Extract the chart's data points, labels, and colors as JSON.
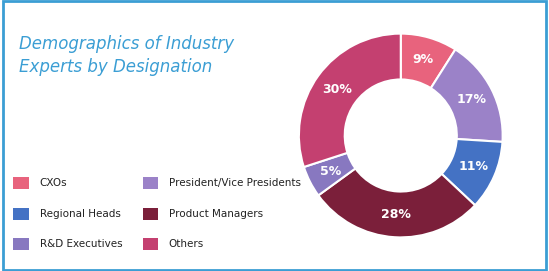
{
  "title": "Demographics of Industry\nExperts by Designation",
  "title_color": "#3B9ED4",
  "title_fontsize": 12,
  "segments": [
    {
      "label": "CXOs",
      "value": 9,
      "color": "#E8637D",
      "pct": "9%"
    },
    {
      "label": "President/Vice Presidents",
      "value": 17,
      "color": "#9B82C8",
      "pct": "17%"
    },
    {
      "label": "Regional Heads",
      "value": 11,
      "color": "#4472C4",
      "pct": "11%"
    },
    {
      "label": "Product Managers",
      "value": 28,
      "color": "#7B1F3A",
      "pct": "28%"
    },
    {
      "label": "R&D Executives",
      "value": 5,
      "color": "#8878C0",
      "pct": "5%"
    },
    {
      "label": "Others",
      "value": 30,
      "color": "#C44070",
      "pct": "30%"
    }
  ],
  "legend_rows": [
    [
      "CXOs",
      "President/Vice Presidents"
    ],
    [
      "Regional Heads",
      "Product Managers"
    ],
    [
      "R&D Executives",
      "Others"
    ]
  ],
  "background_color": "#FFFFFF",
  "border_color": "#3B9ED4",
  "pct_fontsize": 9,
  "pct_color": "white",
  "donut_width": 0.45
}
